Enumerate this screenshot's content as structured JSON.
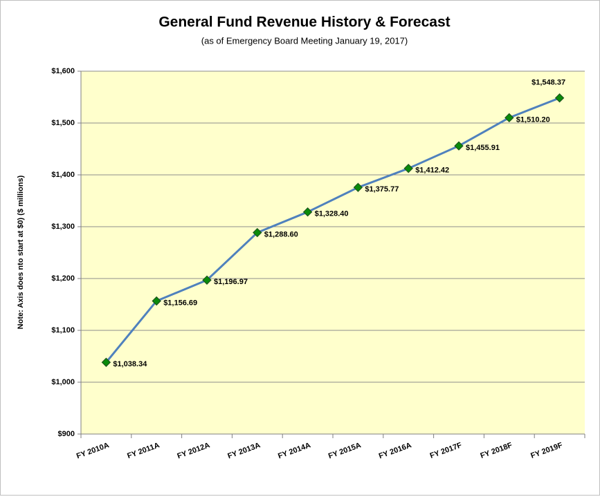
{
  "chart_data": {
    "type": "line",
    "title": "General Fund Revenue History & Forecast",
    "subtitle": "(as of Emergency Board Meeting January 19, 2017)",
    "y_axis_label": "Note: Axis does nto start at $0)  ($ millions)",
    "categories": [
      "FY 2010A",
      "FY 2011A",
      "FY 2012A",
      "FY 2013A",
      "FY 2014A",
      "FY 2015A",
      "FY 2016A",
      "FY 2017F",
      "FY 2018F",
      "FY 2019F"
    ],
    "series": [
      {
        "name": "General Fund Revenue",
        "color": "#4f81bd",
        "marker_color": "#0a8a0a",
        "values": [
          1038.34,
          1156.69,
          1196.97,
          1288.6,
          1328.4,
          1375.77,
          1412.42,
          1455.91,
          1510.2,
          1548.37
        ],
        "value_labels": [
          "$1,038.34",
          "$1,156.69",
          "$1,196.97",
          "$1,288.60",
          "$1,328.40",
          "$1,375.77",
          "$1,412.42",
          "$1,455.91",
          "$1,510.20",
          "$1,548.37"
        ]
      }
    ],
    "ylim": [
      900,
      1600
    ],
    "yticks": [
      {
        "value": 900,
        "label": "$900"
      },
      {
        "value": 1000,
        "label": "$1,000"
      },
      {
        "value": 1100,
        "label": "$1,100"
      },
      {
        "value": 1200,
        "label": "$1,200"
      },
      {
        "value": 1300,
        "label": "$1,300"
      },
      {
        "value": 1400,
        "label": "$1,400"
      },
      {
        "value": 1500,
        "label": "$1,500"
      },
      {
        "value": 1600,
        "label": "$1,600"
      }
    ],
    "grid": true,
    "plot_background": "#ffffcc"
  }
}
